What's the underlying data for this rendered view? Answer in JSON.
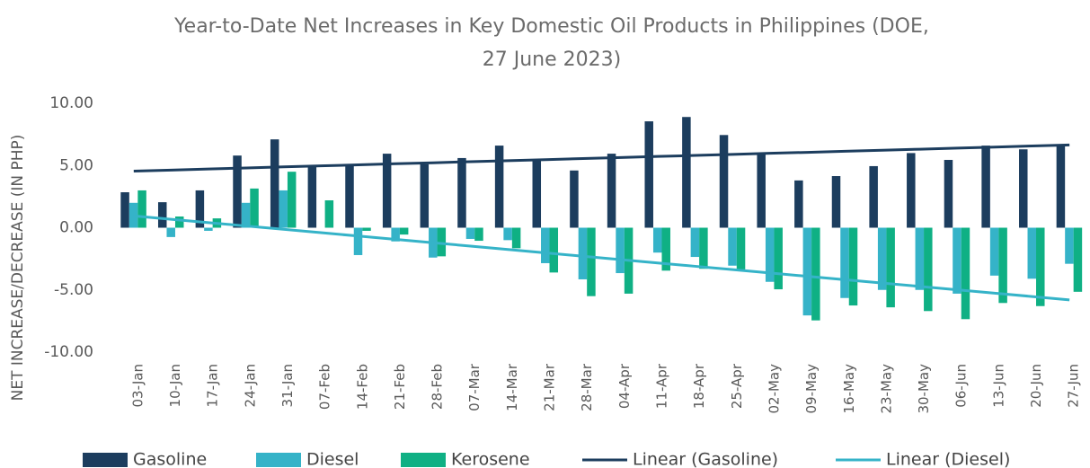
{
  "chart_data": {
    "type": "bar",
    "title": [
      "Year-to-Date Net Increases in Key Domestic Oil Products in Philippines (DOE,",
      "27 June 2023)"
    ],
    "y_label": "NET INCREASE/DECREASE  (IN PHP)",
    "categories": [
      "03-Jan",
      "10-Jan",
      "17-Jan",
      "24-Jan",
      "31-Jan",
      "07-Feb",
      "14-Feb",
      "21-Feb",
      "28-Feb",
      "07-Mar",
      "14-Mar",
      "21-Mar",
      "28-Mar",
      "04-Apr",
      "11-Apr",
      "18-Apr",
      "25-Apr",
      "02-May",
      "09-May",
      "16-May",
      "23-May",
      "30-May",
      "06-Jun",
      "13-Jun",
      "20-Jun",
      "27-Jun"
    ],
    "series": [
      {
        "name": "Gasoline",
        "type": "bar",
        "color": "#1c3d5e",
        "values": [
          2.85,
          2.05,
          3.0,
          5.8,
          7.1,
          4.95,
          4.95,
          5.95,
          5.1,
          5.6,
          6.6,
          5.45,
          4.6,
          5.95,
          8.55,
          8.9,
          7.45,
          5.9,
          3.8,
          4.15,
          4.95,
          6.0,
          5.45,
          6.6,
          6.3,
          6.7
        ]
      },
      {
        "name": "Diesel",
        "type": "bar",
        "color": "#35b3c8",
        "values": [
          2.0,
          -0.75,
          -0.25,
          2.0,
          3.0,
          0,
          -2.2,
          -1.1,
          -2.4,
          -0.9,
          -1.0,
          -2.85,
          -4.15,
          -3.65,
          -2.0,
          -2.35,
          -3.05,
          -4.35,
          -7.05,
          -5.65,
          -5.0,
          -5.0,
          -5.3,
          -3.85,
          -4.1,
          -2.9
        ]
      },
      {
        "name": "Kerosene",
        "type": "bar",
        "color": "#0fb084",
        "values": [
          3.0,
          0.9,
          0.75,
          3.15,
          4.5,
          2.2,
          -0.25,
          -0.55,
          -2.3,
          -1.05,
          -1.65,
          -3.6,
          -5.5,
          -5.3,
          -3.45,
          -3.3,
          -3.35,
          -4.95,
          -7.45,
          -6.25,
          -6.4,
          -6.7,
          -7.35,
          -6.05,
          -6.3,
          -5.15
        ]
      },
      {
        "name": "Linear (Gasoline)",
        "type": "line",
        "color": "#1c3d5e",
        "values": [
          4.55,
          4.63,
          4.72,
          4.8,
          4.89,
          4.97,
          5.05,
          5.14,
          5.22,
          5.31,
          5.39,
          5.47,
          5.56,
          5.64,
          5.73,
          5.81,
          5.89,
          5.98,
          6.06,
          6.15,
          6.23,
          6.31,
          6.4,
          6.48,
          6.57,
          6.65
        ]
      },
      {
        "name": "Linear (Diesel)",
        "type": "line",
        "color": "#35b3c8",
        "values": [
          0.95,
          0.68,
          0.41,
          0.14,
          -0.13,
          -0.4,
          -0.67,
          -0.94,
          -1.21,
          -1.48,
          -1.75,
          -2.02,
          -2.29,
          -2.56,
          -2.83,
          -3.1,
          -3.37,
          -3.64,
          -3.91,
          -4.18,
          -4.45,
          -4.72,
          -4.99,
          -5.26,
          -5.53,
          -5.8
        ]
      }
    ],
    "ylim": [
      -10,
      10
    ],
    "yticks": [
      {
        "value": 10,
        "label": "10.00"
      },
      {
        "value": 5,
        "label": "5.00"
      },
      {
        "value": 0,
        "label": "0.00"
      },
      {
        "value": -5,
        "label": "-5.00"
      },
      {
        "value": -10,
        "label": "-10.00"
      }
    ],
    "grid": false,
    "legend": "bottom"
  }
}
